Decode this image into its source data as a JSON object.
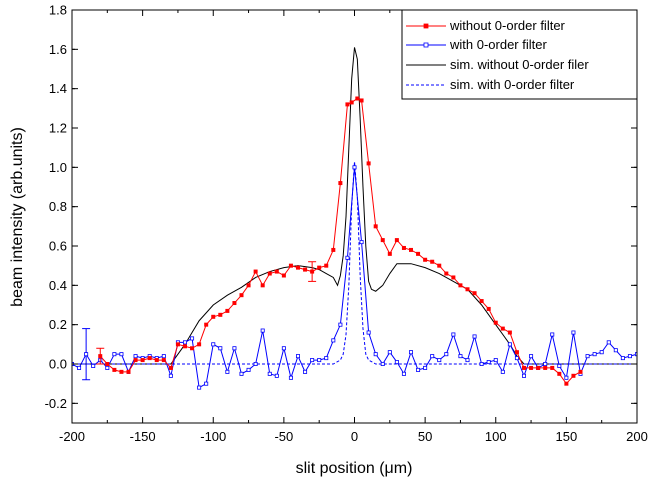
{
  "chart_data": {
    "type": "line",
    "xlabel": "slit position (μm)",
    "ylabel": "beam intensity (arb.units)",
    "xlim": [
      -200,
      200
    ],
    "ylim": [
      -0.3,
      1.8
    ],
    "x_ticks": [
      -200,
      -150,
      -100,
      -50,
      0,
      50,
      100,
      150,
      200
    ],
    "y_ticks": [
      -0.2,
      0.0,
      0.2,
      0.4,
      0.6,
      0.8,
      1.0,
      1.2,
      1.4,
      1.6,
      1.8
    ],
    "x_tick_labels": [
      "-200",
      "-150",
      "-100",
      "-50",
      "0",
      "50",
      "100",
      "150",
      "200"
    ],
    "y_tick_labels": [
      "-0.2",
      "0.0",
      "0.2",
      "0.4",
      "0.6",
      "0.8",
      "1.0",
      "1.2",
      "1.4",
      "1.6",
      "1.8"
    ],
    "grid": false,
    "legend_position": "top-right",
    "series": [
      {
        "name": "without 0-order filter",
        "color": "#ff0000",
        "style": "solid",
        "marker": "filled-square",
        "x": [
          -180,
          -175,
          -170,
          -165,
          -160,
          -155,
          -150,
          -145,
          -140,
          -135,
          -130,
          -125,
          -120,
          -115,
          -110,
          -105,
          -100,
          -95,
          -90,
          -85,
          -80,
          -75,
          -70,
          -65,
          -60,
          -55,
          -50,
          -45,
          -40,
          -35,
          -30,
          -25,
          -20,
          -15,
          -10,
          -5,
          -2,
          2,
          5,
          10,
          15,
          20,
          25,
          30,
          35,
          40,
          45,
          50,
          55,
          60,
          65,
          70,
          75,
          80,
          85,
          90,
          95,
          100,
          105,
          110,
          115,
          120,
          125,
          130,
          135,
          140,
          145,
          150,
          155,
          160
        ],
        "y": [
          0.04,
          0.0,
          -0.03,
          -0.04,
          -0.04,
          0.02,
          0.02,
          0.03,
          0.02,
          0.02,
          -0.02,
          0.1,
          0.09,
          0.08,
          0.1,
          0.2,
          0.24,
          0.25,
          0.27,
          0.31,
          0.35,
          0.4,
          0.47,
          0.4,
          0.46,
          0.47,
          0.45,
          0.5,
          0.49,
          0.48,
          0.47,
          0.49,
          0.5,
          0.58,
          0.92,
          1.32,
          1.33,
          1.35,
          1.34,
          1.02,
          0.7,
          0.63,
          0.56,
          0.63,
          0.59,
          0.58,
          0.56,
          0.53,
          0.52,
          0.5,
          0.46,
          0.44,
          0.4,
          0.38,
          0.36,
          0.32,
          0.28,
          0.21,
          0.18,
          0.16,
          0.06,
          -0.02,
          -0.02,
          -0.02,
          -0.02,
          -0.02,
          -0.05,
          -0.1,
          -0.06,
          -0.04
        ],
        "error_bars": [
          {
            "x": -180,
            "y": 0.04,
            "err": 0.04
          },
          {
            "x": -30,
            "y": 0.47,
            "err": 0.05
          }
        ]
      },
      {
        "name": "with 0-order filter",
        "color": "#0000ff",
        "style": "solid",
        "marker": "open-square",
        "x": [
          -200,
          -195,
          -190,
          -185,
          -180,
          -175,
          -170,
          -165,
          -160,
          -155,
          -150,
          -145,
          -140,
          -135,
          -130,
          -125,
          -120,
          -115,
          -110,
          -105,
          -100,
          -95,
          -90,
          -85,
          -80,
          -75,
          -70,
          -65,
          -60,
          -55,
          -50,
          -45,
          -40,
          -35,
          -30,
          -25,
          -20,
          -15,
          -10,
          -5,
          0,
          5,
          10,
          15,
          20,
          25,
          30,
          35,
          40,
          45,
          50,
          55,
          60,
          65,
          70,
          75,
          80,
          85,
          90,
          95,
          100,
          105,
          110,
          115,
          120,
          125,
          130,
          135,
          140,
          145,
          150,
          155,
          160,
          165,
          170,
          175,
          180,
          185,
          190,
          195,
          200
        ],
        "y": [
          0.0,
          -0.02,
          0.05,
          -0.01,
          0.02,
          -0.02,
          0.05,
          0.05,
          -0.04,
          0.04,
          0.03,
          0.04,
          0.03,
          0.04,
          -0.06,
          0.11,
          0.11,
          0.13,
          -0.12,
          -0.1,
          0.1,
          0.08,
          -0.04,
          0.08,
          -0.05,
          -0.03,
          0.0,
          0.17,
          -0.05,
          -0.06,
          0.08,
          -0.07,
          0.04,
          -0.04,
          0.02,
          0.02,
          0.03,
          0.12,
          0.2,
          0.54,
          1.0,
          0.62,
          0.16,
          0.05,
          0.0,
          0.06,
          0.01,
          -0.05,
          0.06,
          -0.03,
          -0.02,
          0.04,
          0.02,
          0.05,
          0.15,
          0.04,
          0.02,
          0.14,
          0.0,
          0.01,
          0.02,
          -0.04,
          0.1,
          0.03,
          -0.06,
          0.04,
          -0.02,
          0.0,
          0.15,
          -0.01,
          -0.07,
          0.16,
          -0.05,
          0.04,
          0.05,
          0.06,
          0.11,
          0.07,
          0.03,
          0.04,
          0.05
        ],
        "error_bars": [
          {
            "x": -190,
            "y": 0.05,
            "err": 0.13
          }
        ]
      },
      {
        "name": "sim. without 0-order filer",
        "color": "#000000",
        "style": "solid",
        "marker": "none",
        "x": [
          -200,
          -130,
          -125,
          -120,
          -115,
          -110,
          -100,
          -90,
          -80,
          -70,
          -60,
          -50,
          -40,
          -30,
          -25,
          -20,
          -15,
          -12,
          -10,
          -8,
          -6,
          -4,
          -2,
          0,
          2,
          4,
          6,
          8,
          10,
          12,
          15,
          20,
          25,
          30,
          40,
          50,
          60,
          70,
          80,
          90,
          100,
          105,
          110,
          115,
          120,
          125,
          130,
          200
        ],
        "y": [
          0.0,
          0.0,
          0.05,
          0.1,
          0.16,
          0.22,
          0.3,
          0.35,
          0.39,
          0.44,
          0.47,
          0.49,
          0.5,
          0.49,
          0.48,
          0.46,
          0.44,
          0.4,
          0.45,
          0.55,
          0.75,
          1.1,
          1.45,
          1.61,
          1.55,
          1.25,
          0.9,
          0.6,
          0.42,
          0.38,
          0.37,
          0.4,
          0.46,
          0.51,
          0.51,
          0.49,
          0.46,
          0.42,
          0.38,
          0.3,
          0.2,
          0.15,
          0.1,
          0.04,
          0.0,
          0.0,
          0.0,
          0.0
        ]
      },
      {
        "name": "sim. with 0-order filter",
        "color": "#0000ff",
        "style": "dashed",
        "marker": "none",
        "x": [
          -200,
          -15,
          -10,
          -8,
          -6,
          -4,
          -2,
          0,
          2,
          4,
          6,
          8,
          10,
          15,
          200
        ],
        "y": [
          0.0,
          0.0,
          0.02,
          0.05,
          0.15,
          0.4,
          0.8,
          1.03,
          0.85,
          0.45,
          0.18,
          0.05,
          0.02,
          0.0,
          0.0
        ]
      }
    ]
  }
}
